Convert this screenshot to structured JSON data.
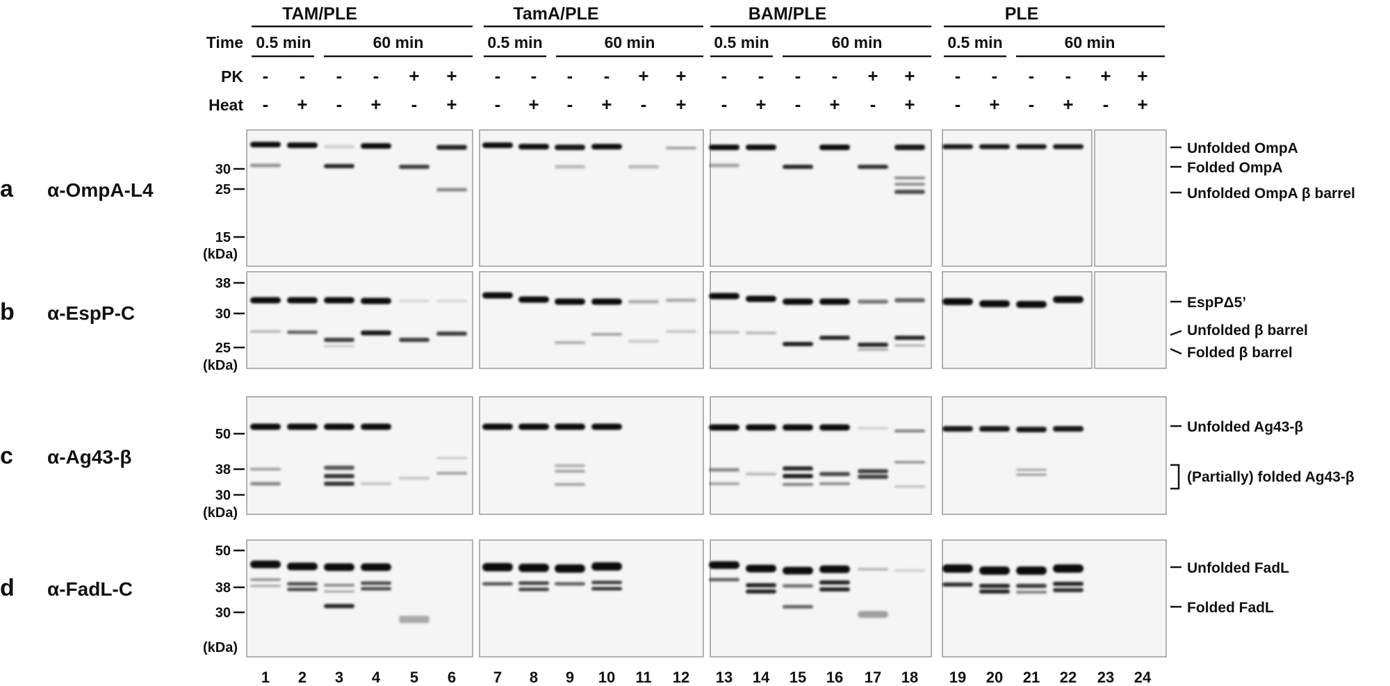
{
  "groups": [
    {
      "id": "tam",
      "title": "TAM/PLE",
      "time_short": "0.5 min",
      "time_long": "60 min"
    },
    {
      "id": "tama",
      "title": "TamA/PLE",
      "time_short": "0.5 min",
      "time_long": "60 min"
    },
    {
      "id": "bam",
      "title": "BAM/PLE",
      "time_short": "0.5 min",
      "time_long": "60 min"
    },
    {
      "id": "ple",
      "title": "PLE",
      "time_short": "0.5 min",
      "time_long": "60 min"
    }
  ],
  "condition_labels": {
    "time": "Time",
    "pk": "PK",
    "heat": "Heat"
  },
  "pk_pattern": [
    "-",
    "-",
    "-",
    "-",
    "+",
    "+"
  ],
  "heat_pattern": [
    "-",
    "+",
    "-",
    "+",
    "-",
    "+"
  ],
  "lanes": [
    "1",
    "2",
    "3",
    "4",
    "5",
    "6",
    "7",
    "8",
    "9",
    "10",
    "11",
    "12",
    "13",
    "14",
    "15",
    "16",
    "17",
    "18",
    "19",
    "20",
    "21",
    "22",
    "23",
    "24"
  ],
  "kda_unit": "(kDa)",
  "panels": [
    {
      "letter": "a",
      "antibody": "α-OmpA-L4",
      "markers": [
        "30",
        "25",
        "15"
      ],
      "bands": [
        "Unfolded OmpA",
        "Folded OmpA",
        "Unfolded OmpA β barrel"
      ]
    },
    {
      "letter": "b",
      "antibody": "α-EspP-C",
      "markers": [
        "38",
        "30",
        "25"
      ],
      "bands": [
        "EspPΔ5’",
        "Unfolded β barrel",
        "Folded β barrel"
      ]
    },
    {
      "letter": "c",
      "antibody": "α-Ag43-β",
      "markers": [
        "50",
        "38",
        "30"
      ],
      "bands": [
        "Unfolded Ag43-β",
        "(Partially) folded Ag43-β"
      ]
    },
    {
      "letter": "d",
      "antibody": "α-FadL-C",
      "markers": [
        "50",
        "38",
        "30"
      ],
      "bands": [
        "Unfolded FadL",
        "Folded FadL"
      ]
    }
  ]
}
